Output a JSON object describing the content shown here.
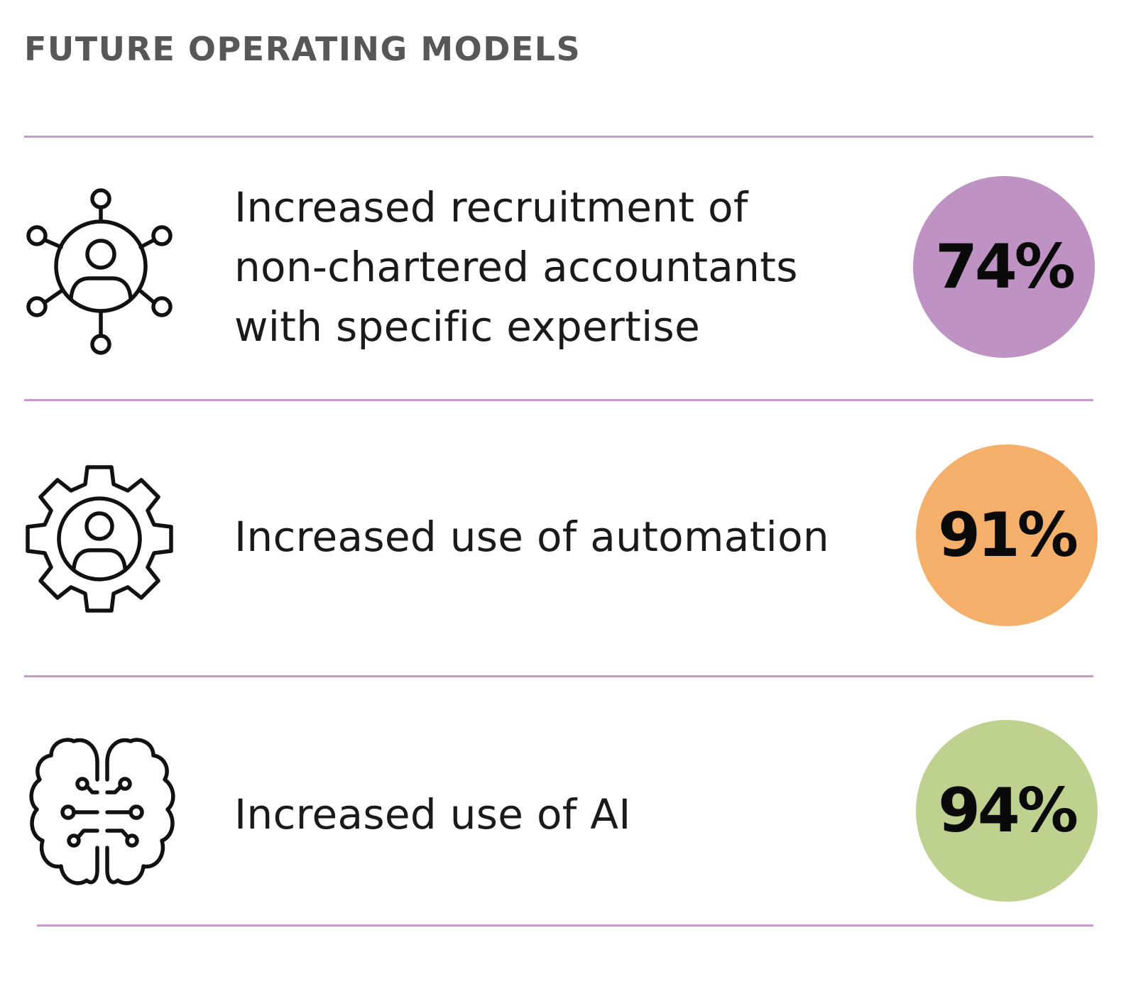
{
  "title": "FUTURE OPERATING MODELS",
  "colors": {
    "divider": "#c79ac9",
    "title_text": "#575757",
    "value_text": "#0a0a0a"
  },
  "rows": [
    {
      "icon": "network-person-icon",
      "label_lines": [
        "Increased recruitment of",
        "non-chartered accountants",
        "with specific expertise"
      ],
      "value": "74%",
      "color": "#be93c3"
    },
    {
      "icon": "gear-person-icon",
      "label_lines": [
        "Increased use of automation"
      ],
      "value": "91%",
      "color": "#f4b06a"
    },
    {
      "icon": "brain-circuit-icon",
      "label_lines": [
        "Increased use of AI"
      ],
      "value": "94%",
      "color": "#bfd18f"
    }
  ]
}
